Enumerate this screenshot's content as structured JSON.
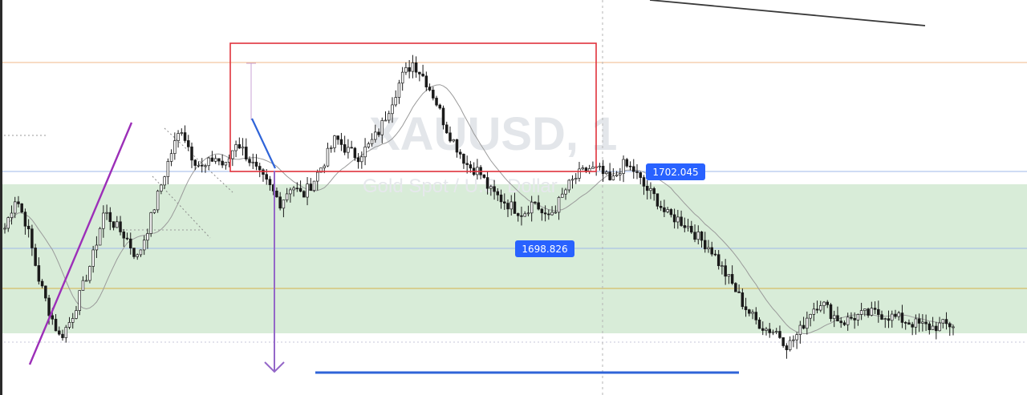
{
  "chart_data": {
    "type": "candlestick",
    "symbol_watermark": "XAUUSD, 1",
    "symbol_description_watermark": "Gold Spot / U.S. Dollar",
    "price_labels": [
      {
        "value": "1702.045",
        "color": "#2962ff"
      },
      {
        "value": "1698.826",
        "color": "#2962ff"
      }
    ],
    "colors": {
      "candle": "#1a1a1a",
      "moving_average": "#9a9a9a",
      "demand_zone": "#d8ecd8",
      "supply_box_border": "#e0323c",
      "fib_line_orange": "#f2b98a",
      "fib_line_gold": "#d4b24a",
      "trend_line_purple": "#9c2fb8",
      "projection_arrow": "#9467c8",
      "target_line_blue": "#2f64d8",
      "crosshair": "#b5b5b5"
    },
    "grid": false,
    "price_range": [
      1686,
      1712
    ],
    "close_path": [
      1697.2,
      1699.6,
      1697.4,
      1693.6,
      1691.0,
      1688.9,
      1690.3,
      1692.6,
      1695.1,
      1698.5,
      1697.4,
      1696.5,
      1694.9,
      1697.3,
      1700.0,
      1702.7,
      1704.8,
      1702.6,
      1701.6,
      1702.6,
      1701.8,
      1703.8,
      1702.6,
      1701.3,
      1700.3,
      1699.1,
      1700.5,
      1699.6,
      1700.8,
      1702.3,
      1704.0,
      1703.1,
      1702.6,
      1703.4,
      1704.6,
      1706.6,
      1708.6,
      1709.7,
      1708.6,
      1707.0,
      1704.8,
      1703.3,
      1701.9,
      1701.5,
      1700.0,
      1699.4,
      1698.8,
      1698.3,
      1699.3,
      1697.9,
      1698.8,
      1700.3,
      1701.2,
      1701.7,
      1701.5,
      1700.6,
      1702.0,
      1701.6,
      1700.3,
      1699.5,
      1698.2,
      1697.9,
      1697.3,
      1696.4,
      1695.7,
      1694.2,
      1692.9,
      1691.4,
      1690.3,
      1689.6,
      1689.4,
      1688.3,
      1689.3,
      1690.9,
      1691.7,
      1690.7,
      1690.1,
      1690.5,
      1690.7,
      1690.8,
      1690.6,
      1690.4,
      1690.1,
      1689.9,
      1689.7,
      1689.9,
      1689.9
    ]
  }
}
